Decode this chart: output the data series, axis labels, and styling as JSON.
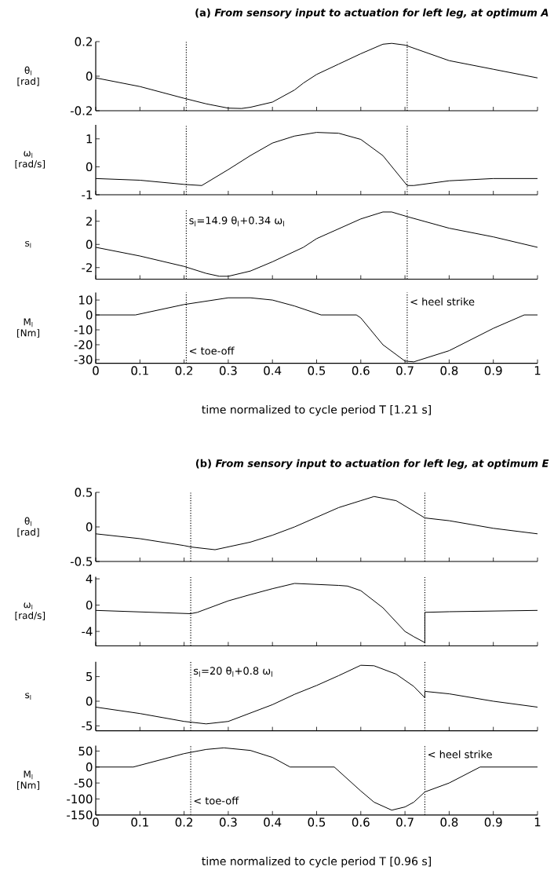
{
  "chart_data": [
    {
      "type": "line",
      "title": "(a) *From sensory input to actuation for left leg, at optimum A*",
      "ylabel": "θ$_{l}$ [rad]",
      "x": [
        0,
        0.1,
        0.2,
        0.25,
        0.3,
        0.33,
        0.35,
        0.4,
        0.45,
        0.47,
        0.5,
        0.55,
        0.6,
        0.65,
        0.67,
        0.7,
        0.8,
        0.9,
        1
      ],
      "series": [
        {
          "color": "#000000",
          "values": [
            -0.01,
            -0.06,
            -0.128,
            -0.16,
            -0.185,
            -0.187,
            -0.18,
            -0.15,
            -0.08,
            -0.04,
            0.01,
            0.07,
            0.13,
            0.185,
            0.19,
            0.18,
            0.09,
            0.04,
            -0.01
          ]
        }
      ],
      "xlim": [
        0,
        1
      ],
      "xticks": [
        0,
        0.1,
        0.2,
        0.3,
        0.4,
        0.5,
        0.6,
        0.7,
        0.8,
        0.9,
        1
      ],
      "ylim": [
        -0.2,
        0.2
      ],
      "yticks": [
        -0.2,
        0,
        0.2
      ],
      "tick_labels": "y",
      "ref_lines": [
        {
          "axis": "x",
          "value": 0.205,
          "line_style": "dotted"
        },
        {
          "axis": "x",
          "value": 0.705,
          "line_style": "dotted"
        }
      ]
    },
    {
      "type": "line",
      "ylabel": "ω$_{l}$ [rad/s]",
      "x": [
        0,
        0.1,
        0.2,
        0.24,
        0.3,
        0.35,
        0.4,
        0.45,
        0.5,
        0.55,
        0.6,
        0.65,
        0.705,
        0.72,
        0.8,
        0.9,
        1
      ],
      "series": [
        {
          "color": "#000000",
          "values": [
            -0.42,
            -0.48,
            -0.63,
            -0.67,
            -0.1,
            0.4,
            0.85,
            1.1,
            1.23,
            1.2,
            0.98,
            0.4,
            -0.67,
            -0.67,
            -0.5,
            -0.42,
            -0.42
          ]
        }
      ],
      "xlim": [
        0,
        1
      ],
      "xticks": [
        0,
        0.1,
        0.2,
        0.3,
        0.4,
        0.5,
        0.6,
        0.7,
        0.8,
        0.9,
        1
      ],
      "ylim": [
        -1,
        1.5
      ],
      "yticks": [
        -1,
        0,
        1
      ],
      "tick_labels": "y",
      "ref_lines": [
        {
          "axis": "x",
          "value": 0.205,
          "line_style": "dotted"
        },
        {
          "axis": "x",
          "value": 0.705,
          "line_style": "dotted"
        }
      ]
    },
    {
      "type": "line",
      "ylabel": "s$_{l}$",
      "x": [
        0,
        0.1,
        0.2,
        0.25,
        0.28,
        0.3,
        0.35,
        0.4,
        0.47,
        0.5,
        0.6,
        0.65,
        0.67,
        0.705,
        0.8,
        0.9,
        1
      ],
      "series": [
        {
          "color": "#000000",
          "values": [
            -0.25,
            -1.0,
            -1.9,
            -2.5,
            -2.75,
            -2.75,
            -2.3,
            -1.5,
            -0.25,
            0.5,
            2.2,
            2.8,
            2.8,
            2.4,
            1.4,
            0.65,
            -0.25
          ]
        }
      ],
      "xlim": [
        0,
        1
      ],
      "xticks": [
        0,
        0.1,
        0.2,
        0.3,
        0.4,
        0.5,
        0.6,
        0.7,
        0.8,
        0.9,
        1
      ],
      "ylim": [
        -3,
        3
      ],
      "yticks": [
        -2,
        0,
        2
      ],
      "tick_labels": "y",
      "annotations": [
        {
          "text": "s$_{l}$=14.9 θ$_{l}$+0.34 ω$_{l}$",
          "x": 0.205,
          "y": 2
        }
      ],
      "ref_lines": [
        {
          "axis": "x",
          "value": 0.205,
          "line_style": "dotted"
        },
        {
          "axis": "x",
          "value": 0.705,
          "line_style": "dotted"
        }
      ]
    },
    {
      "type": "line",
      "ylabel": "M$_{l}$ [Nm]",
      "xlabel": "time normalized to cycle period T [1.21 s]",
      "x": [
        0,
        0.09,
        0.2,
        0.3,
        0.35,
        0.4,
        0.45,
        0.51,
        0.59,
        0.6,
        0.65,
        0.7,
        0.72,
        0.8,
        0.9,
        0.97,
        1
      ],
      "series": [
        {
          "color": "#000000",
          "values": [
            0,
            0,
            7,
            11.5,
            11.5,
            10,
            6,
            0,
            0,
            -2,
            -20,
            -31,
            -31.5,
            -24,
            -9,
            0,
            0
          ]
        }
      ],
      "xlim": [
        0,
        1
      ],
      "xticks": [
        0,
        0.1,
        0.2,
        0.3,
        0.4,
        0.5,
        0.6,
        0.7,
        0.8,
        0.9,
        1
      ],
      "ylim": [
        -32.5,
        15
      ],
      "yticks": [
        -30,
        -20,
        -10,
        0,
        10
      ],
      "annotations": [
        {
          "text": "< heel strike",
          "x": 0.705,
          "y": 9
        },
        {
          "text": "< toe-off",
          "x": 0.205,
          "y": -24
        }
      ],
      "ref_lines": [
        {
          "axis": "x",
          "value": 0.205,
          "line_style": "dotted"
        },
        {
          "axis": "x",
          "value": 0.705,
          "line_style": "dotted"
        }
      ]
    },
    {
      "type": "line",
      "title": "(b) *From sensory input to actuation for left leg, at optimum E*",
      "ylabel": "θ$_{l}$ [rad]",
      "x": [
        0,
        0.1,
        0.2,
        0.215,
        0.27,
        0.35,
        0.4,
        0.45,
        0.55,
        0.6,
        0.63,
        0.68,
        0.745,
        0.8,
        0.9,
        1
      ],
      "series": [
        {
          "color": "#000000",
          "values": [
            -0.1,
            -0.17,
            -0.27,
            -0.29,
            -0.33,
            -0.22,
            -0.12,
            0,
            0.28,
            0.38,
            0.44,
            0.38,
            0.13,
            0.09,
            -0.02,
            -0.1
          ]
        }
      ],
      "xlim": [
        0,
        1
      ],
      "xticks": [
        0,
        0.1,
        0.2,
        0.3,
        0.4,
        0.5,
        0.6,
        0.7,
        0.8,
        0.9,
        1
      ],
      "ylim": [
        -0.5,
        0.5
      ],
      "yticks": [
        -0.5,
        0,
        0.5
      ],
      "tick_labels": "y",
      "ref_lines": [
        {
          "axis": "x",
          "value": 0.215,
          "line_style": "dotted"
        },
        {
          "axis": "x",
          "value": 0.745,
          "line_style": "dotted"
        }
      ]
    },
    {
      "type": "line",
      "ylabel": "ω$_{l}$ [rad/s]",
      "x": [
        0,
        0.215,
        0.23,
        0.3,
        0.35,
        0.4,
        0.45,
        0.55,
        0.57,
        0.6,
        0.65,
        0.7,
        0.72,
        0.745,
        0.745,
        0.8,
        1
      ],
      "series": [
        {
          "color": "#000000",
          "values": [
            -0.8,
            -1.3,
            -1.1,
            0.65,
            1.6,
            2.5,
            3.3,
            3.0,
            2.9,
            2.2,
            -0.4,
            -4,
            -4.8,
            -5.7,
            -1.1,
            -1.0,
            -0.8
          ]
        }
      ],
      "xlim": [
        0,
        1
      ],
      "xticks": [
        0,
        0.1,
        0.2,
        0.3,
        0.4,
        0.5,
        0.6,
        0.7,
        0.8,
        0.9,
        1
      ],
      "ylim": [
        -6.2,
        4.3
      ],
      "yticks": [
        -4,
        0,
        4
      ],
      "tick_labels": "y",
      "ref_lines": [
        {
          "axis": "x",
          "value": 0.215,
          "line_style": "dotted"
        },
        {
          "axis": "x",
          "value": 0.745,
          "line_style": "dotted"
        }
      ]
    },
    {
      "type": "line",
      "ylabel": "s$_{l}$",
      "x": [
        0,
        0.1,
        0.2,
        0.25,
        0.3,
        0.4,
        0.45,
        0.5,
        0.55,
        0.6,
        0.63,
        0.68,
        0.72,
        0.745,
        0.745,
        0.8,
        0.9,
        1
      ],
      "series": [
        {
          "color": "#000000",
          "values": [
            -1.2,
            -2.5,
            -4.1,
            -4.6,
            -4.1,
            -0.7,
            1.4,
            3.2,
            5.2,
            7.3,
            7.2,
            5.5,
            3,
            0.7,
            2,
            1.5,
            0,
            -1.2
          ]
        }
      ],
      "xlim": [
        0,
        1
      ],
      "xticks": [
        0,
        0.1,
        0.2,
        0.3,
        0.4,
        0.5,
        0.6,
        0.7,
        0.8,
        0.9,
        1
      ],
      "ylim": [
        -6,
        8
      ],
      "yticks": [
        -5,
        0,
        5
      ],
      "tick_labels": "y",
      "annotations": [
        {
          "text": "s$_{l}$=20 θ$_{l}$+0.8 ω$_{l}$",
          "x": 0.215,
          "y": 6
        }
      ],
      "ref_lines": [
        {
          "axis": "x",
          "value": 0.215,
          "line_style": "dotted"
        },
        {
          "axis": "x",
          "value": 0.745,
          "line_style": "dotted"
        }
      ]
    },
    {
      "type": "line",
      "ylabel": "M$_{l}$ [Nm]",
      "xlabel": "time normalized to cycle period T [0.96 s]",
      "x": [
        0,
        0.085,
        0.2,
        0.25,
        0.29,
        0.35,
        0.4,
        0.44,
        0.54,
        0.6,
        0.63,
        0.67,
        0.7,
        0.72,
        0.745,
        0.8,
        0.87,
        1
      ],
      "series": [
        {
          "color": "#000000",
          "values": [
            0,
            0,
            42,
            55,
            60,
            52,
            30,
            0,
            0,
            -75,
            -110,
            -135,
            -125,
            -110,
            -78,
            -50,
            0,
            0
          ]
        }
      ],
      "xlim": [
        0,
        1
      ],
      "xticks": [
        0,
        0.1,
        0.2,
        0.3,
        0.4,
        0.5,
        0.6,
        0.7,
        0.8,
        0.9,
        1
      ],
      "ylim": [
        -150,
        67
      ],
      "yticks": [
        -150,
        -100,
        -50,
        0,
        50
      ],
      "annotations": [
        {
          "text": "< heel strike",
          "x": 0.745,
          "y": 40
        },
        {
          "text": "< toe-off",
          "x": 0.215,
          "y": -105
        }
      ],
      "ref_lines": [
        {
          "axis": "x",
          "value": 0.215,
          "line_style": "dotted"
        },
        {
          "axis": "x",
          "value": 0.745,
          "line_style": "dotted"
        }
      ]
    }
  ]
}
